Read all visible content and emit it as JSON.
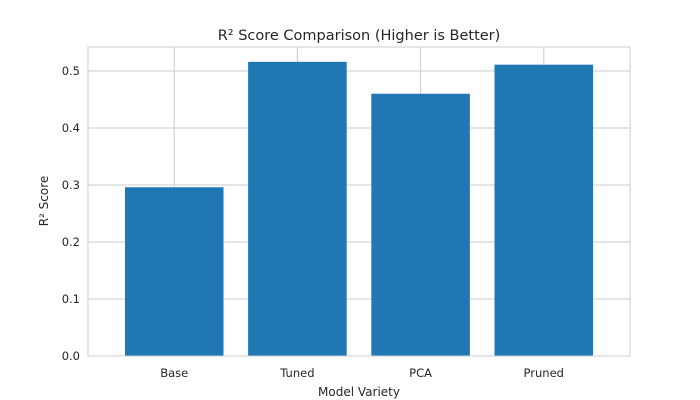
{
  "chart_data": {
    "type": "bar",
    "title": "R² Score Comparison (Higher is Better)",
    "xlabel": "Model Variety",
    "ylabel": "R² Score",
    "categories": [
      "Base",
      "Tuned",
      "PCA",
      "Pruned"
    ],
    "values": [
      0.296,
      0.516,
      0.46,
      0.511
    ],
    "ylim": [
      0,
      0.542
    ],
    "yticks": [
      "0.0",
      "0.1",
      "0.2",
      "0.3",
      "0.4",
      "0.5"
    ],
    "grid": true,
    "bar_color": "#1f77b4",
    "grid_color": "#cccccc",
    "axes_edge_color": "#cccccc",
    "text_color": "#262626"
  }
}
